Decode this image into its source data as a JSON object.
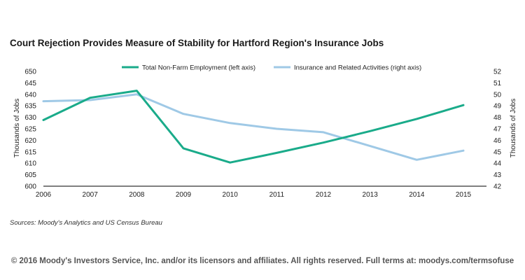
{
  "chart_data": {
    "type": "line",
    "title": "Court Rejection Provides Measure of Stability for Hartford Region's Insurance Jobs",
    "x": [
      "2006",
      "2007",
      "2008",
      "2009",
      "2010",
      "2011",
      "2012",
      "2013",
      "2014",
      "2015"
    ],
    "xlabel": "",
    "ylabel_left": "Thousands of Jobs",
    "ylabel_right": "Thousands of Jobs",
    "ylim_left": [
      600,
      650
    ],
    "ylim_right": [
      42,
      52
    ],
    "yticks_left": [
      600,
      605,
      610,
      615,
      620,
      625,
      630,
      635,
      640,
      645,
      650
    ],
    "yticks_right": [
      42,
      43,
      44,
      45,
      46,
      47,
      48,
      49,
      50,
      51,
      52
    ],
    "legend_position": "top",
    "grid": false,
    "series": [
      {
        "name": "Total Non-Farm Employment (left axis)",
        "axis": "left",
        "color": "#1aab8a",
        "values": [
          628.8,
          638.5,
          641.6,
          616.5,
          610.3,
          614.5,
          619.0,
          624.0,
          629.3,
          635.3
        ]
      },
      {
        "name": "Insurance and Related Activities (right axis)",
        "axis": "right",
        "color": "#9fc9e6",
        "values": [
          49.4,
          49.5,
          50.0,
          48.3,
          47.5,
          47.0,
          46.7,
          45.5,
          44.3,
          45.1
        ]
      }
    ]
  },
  "source": "Sources: Moody's Analytics and US Census Bureau",
  "copyright": "© 2016 Moody's Investors Service, Inc. and/or its licensors and affiliates. All rights reserved. Full terms at: moodys.com/termsofuse"
}
